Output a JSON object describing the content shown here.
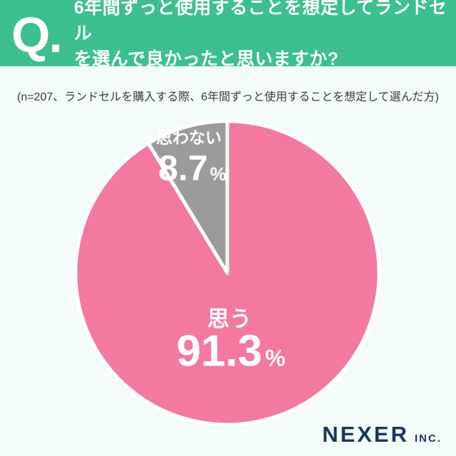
{
  "header": {
    "q_mark": "Q.",
    "question_line1": "6年間ずっと使用することを想定してランドセル",
    "question_line2": "を選んで良かったと思いますか?",
    "bg_color": "#3CC08D",
    "text_color": "#FFFFFF"
  },
  "subtitle": "(n=207、ランドセルを購入する際、6年間ずっと使用することを想定して選んだ方)",
  "chart_data": {
    "type": "pie",
    "title": "6年間ずっと使用することを想定してランドセルを選んで良かったと思いますか?",
    "sample_size_note": "n=207",
    "unit": "%",
    "start_angle_deg": 0,
    "direction": "clockwise",
    "separator_color": "#FFFFFF",
    "slices": [
      {
        "label": "思う",
        "value": 91.3,
        "color": "#F4799E"
      },
      {
        "label": "思わない",
        "value": 8.7,
        "color": "#9B9B9B"
      }
    ]
  },
  "pie_labels": {
    "minor_name": "思わない",
    "minor_value": "8.7",
    "minor_unit": "%",
    "major_name": "思う",
    "major_value": "91.3",
    "major_unit": "%"
  },
  "footer": {
    "brand": "NEXER",
    "brand_suffix": "INC.",
    "color": "#1B355C"
  }
}
